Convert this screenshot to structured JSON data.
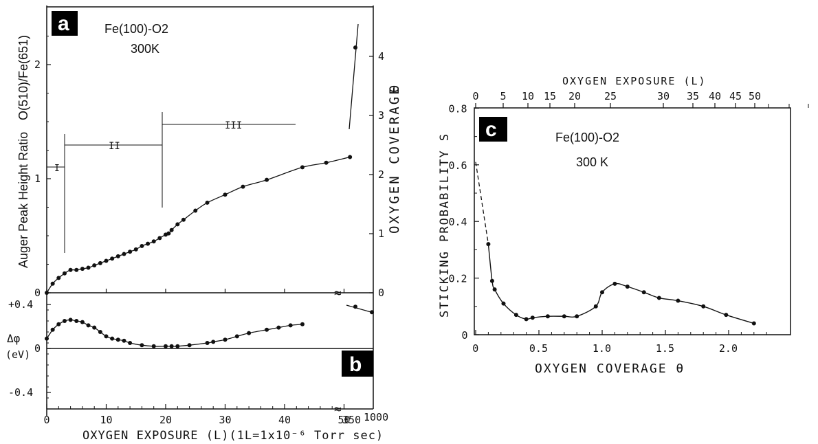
{
  "panel_labels": {
    "a": "a",
    "b": "b",
    "c": "c"
  },
  "chart_data": [
    {
      "type": "scatter",
      "panel": "a",
      "title": "Fe(100)-O2",
      "subtitle": "300K",
      "ylabel": "Auger Peak Height Ratio",
      "ylabel_ratio": "O(510)/Fe(651)",
      "y2label": "OXYGEN COVERAGE",
      "y2symbol": "θ",
      "xlabel": "OXYGEN EXPOSURE (L)(1L=1x10⁻⁶ Torr sec)",
      "ylim": [
        0,
        2.4
      ],
      "xlim": [
        0,
        54
      ],
      "x_ticks": [
        "0",
        "10",
        "20",
        "30",
        "40",
        "50"
      ],
      "x_ticks_broken": [
        "350",
        "1000"
      ],
      "y_ticks": [
        "0",
        "1",
        "2"
      ],
      "y2_ticks": [
        "0",
        "1",
        "2",
        "3",
        "4"
      ],
      "regions": [
        "I",
        "II",
        "III"
      ],
      "series": [
        {
          "values_x": [
            0,
            1,
            2,
            3,
            4,
            5,
            6,
            7,
            8,
            9,
            10,
            11,
            12,
            13,
            14,
            15,
            16,
            17,
            18,
            19,
            20,
            20.5,
            21,
            22,
            23,
            25,
            27,
            30,
            33,
            37,
            43,
            47,
            51
          ],
          "values_y": [
            0,
            0.08,
            0.13,
            0.17,
            0.2,
            0.2,
            0.21,
            0.22,
            0.24,
            0.26,
            0.28,
            0.3,
            0.32,
            0.34,
            0.36,
            0.38,
            0.41,
            0.43,
            0.45,
            0.48,
            0.51,
            0.52,
            0.55,
            0.6,
            0.64,
            0.72,
            0.79,
            0.86,
            0.93,
            0.99,
            1.1,
            1.14,
            1.19
          ]
        }
      ],
      "broken_points": [
        {
          "x": "350",
          "y": 2.15
        }
      ]
    },
    {
      "type": "scatter",
      "panel": "b",
      "ylabel": "Δφ",
      "ylabel_unit": "(eV)",
      "y_ticks": [
        "+0.4",
        "0",
        "-0.4"
      ],
      "ylim": [
        -0.5,
        0.45
      ],
      "series": [
        {
          "values_x": [
            0,
            1,
            2,
            3,
            4,
            5,
            6,
            7,
            8,
            9,
            10,
            11,
            12,
            13,
            14,
            16,
            18,
            20,
            21,
            22,
            24,
            27,
            28,
            30,
            32,
            34,
            37,
            39,
            41,
            43
          ],
          "values_y": [
            0.09,
            0.17,
            0.22,
            0.25,
            0.26,
            0.25,
            0.24,
            0.21,
            0.19,
            0.15,
            0.11,
            0.09,
            0.08,
            0.07,
            0.05,
            0.03,
            0.02,
            0.02,
            0.02,
            0.02,
            0.03,
            0.05,
            0.06,
            0.08,
            0.11,
            0.14,
            0.17,
            0.19,
            0.21,
            0.22
          ]
        }
      ],
      "broken_points": [
        {
          "x": "350",
          "y": 0.38
        },
        {
          "x": "1000",
          "y": 0.33
        }
      ]
    },
    {
      "type": "line",
      "panel": "c",
      "title": "Fe(100)-O2",
      "subtitle": "300 K",
      "ylabel": "STICKING PROBABILITY S",
      "xlabel": "OXYGEN COVERAGE θ",
      "x2label": "OXYGEN EXPOSURE (L)",
      "xlim": [
        0,
        2.4
      ],
      "ylim": [
        0,
        0.8
      ],
      "x_ticks": [
        "0",
        "0.5",
        "1.0",
        "1.5",
        "2.0"
      ],
      "y_ticks": [
        "0",
        "0.2",
        "0.4",
        "0.6",
        "0.8"
      ],
      "x2_ticks": [
        "0",
        "5",
        "10",
        "15",
        "20",
        "25",
        "30",
        "35",
        "40",
        "45",
        "50"
      ],
      "series": [
        {
          "x": [
            0.1,
            0.13,
            0.15,
            0.22,
            0.32,
            0.4,
            0.45,
            0.57,
            0.7,
            0.8,
            0.95,
            1.0,
            1.1,
            1.2,
            1.33,
            1.45,
            1.6,
            1.8,
            1.98,
            2.2
          ],
          "y": [
            0.32,
            0.19,
            0.16,
            0.11,
            0.07,
            0.055,
            0.06,
            0.065,
            0.065,
            0.065,
            0.1,
            0.15,
            0.18,
            0.17,
            0.15,
            0.13,
            0.12,
            0.1,
            0.07,
            0.04
          ]
        }
      ],
      "extrapolation": {
        "x": [
          0,
          0.1
        ],
        "y": [
          0.61,
          0.32
        ]
      }
    }
  ]
}
